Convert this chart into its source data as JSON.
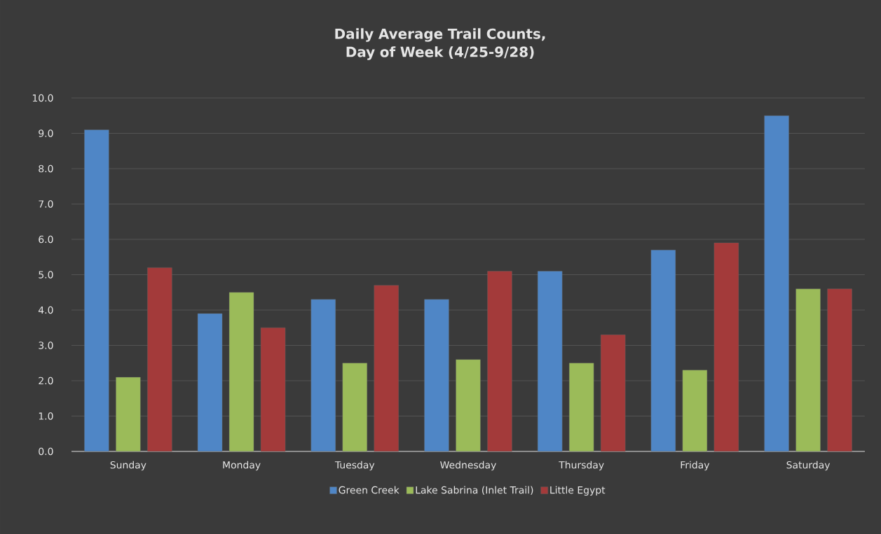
{
  "chart_data": {
    "type": "bar",
    "title": "Daily Average Trail Counts, Day of Week (4/25-9/28)",
    "categories": [
      "Sunday",
      "Monday",
      "Tuesday",
      "Wednesday",
      "Thursday",
      "Friday",
      "Saturday"
    ],
    "series": [
      {
        "name": "Green Creek",
        "color": "#4f86c6",
        "values": [
          9.1,
          3.9,
          4.3,
          4.3,
          5.1,
          5.7,
          9.5
        ]
      },
      {
        "name": "Lake Sabrina (Inlet Trail)",
        "color": "#9bbb59",
        "values": [
          2.1,
          4.5,
          2.5,
          2.6,
          2.5,
          2.3,
          4.6
        ]
      },
      {
        "name": "Little Egypt",
        "color": "#a33a3a",
        "values": [
          5.2,
          3.5,
          4.7,
          5.1,
          3.3,
          5.9,
          4.6
        ]
      }
    ],
    "ylim": [
      0,
      10
    ],
    "yticks": [
      {
        "value": 0,
        "label": "0.0"
      },
      {
        "value": 1,
        "label": "1.0"
      },
      {
        "value": 2,
        "label": "2.0"
      },
      {
        "value": 3,
        "label": "3.0"
      },
      {
        "value": 4,
        "label": "4.0"
      },
      {
        "value": 5,
        "label": "5.0"
      },
      {
        "value": 6,
        "label": "6.0"
      },
      {
        "value": 7,
        "label": "7.0"
      },
      {
        "value": 8,
        "label": "8.0"
      },
      {
        "value": 9,
        "label": "9.0"
      },
      {
        "value": 10,
        "label": "10.0"
      }
    ],
    "grid": "y",
    "legend": "bottom"
  }
}
